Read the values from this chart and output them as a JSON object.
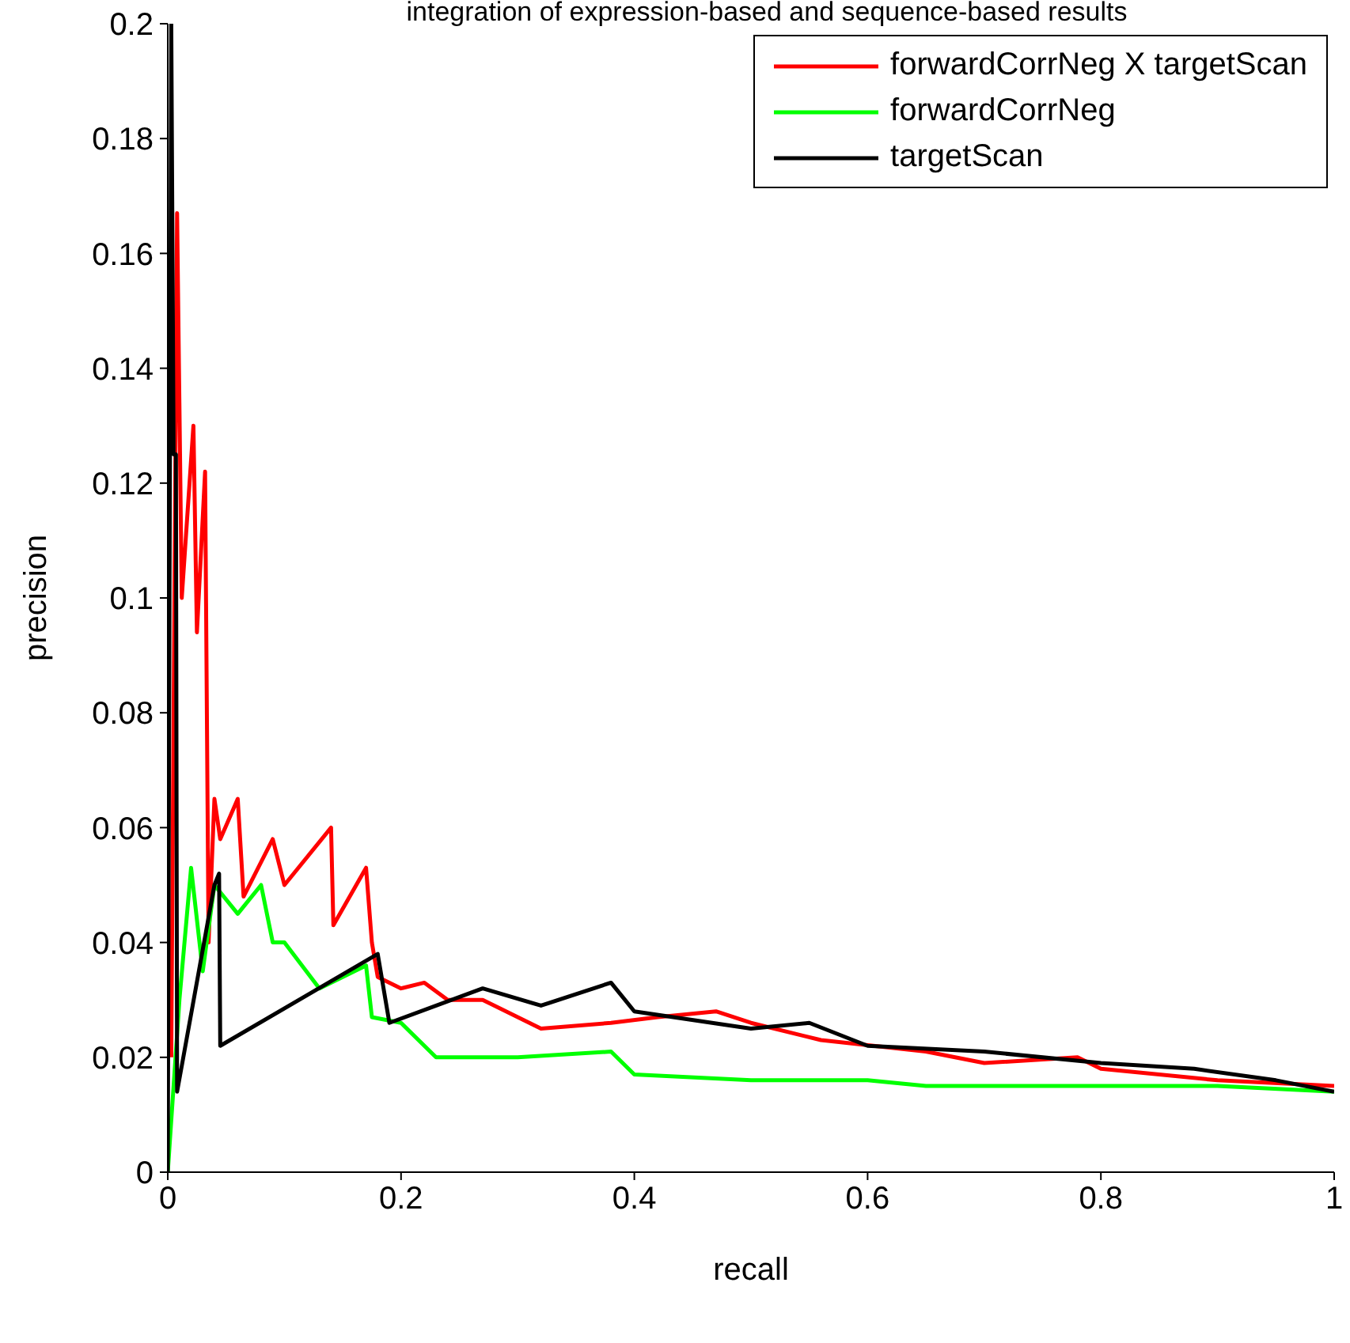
{
  "chart_data": {
    "type": "line",
    "title": "integration of expression-based and sequence-based results",
    "xlabel": "recall",
    "ylabel": "precision",
    "xlim": [
      0,
      1
    ],
    "xticks": [
      0,
      0.2,
      0.4,
      0.6,
      0.8,
      1
    ],
    "ylim": [
      0,
      0.2
    ],
    "yticks": [
      0,
      0.02,
      0.04,
      0.06,
      0.08,
      0.1,
      0.12,
      0.14,
      0.16,
      0.18,
      0.2
    ],
    "grid": false,
    "legend": "top right",
    "marker": "none",
    "line_style": "solid",
    "series": [
      {
        "name": "forwardCorrNeg X targetScan",
        "color": "#ff0000",
        "x": [
          0.003,
          0.008,
          0.012,
          0.022,
          0.025,
          0.032,
          0.035,
          0.04,
          0.045,
          0.06,
          0.065,
          0.09,
          0.1,
          0.14,
          0.142,
          0.17,
          0.175,
          0.18,
          0.2,
          0.22,
          0.24,
          0.27,
          0.32,
          0.38,
          0.42,
          0.47,
          0.5,
          0.56,
          0.65,
          0.7,
          0.78,
          0.8,
          0.9,
          1
        ],
        "values": [
          0.02,
          0.167,
          0.1,
          0.13,
          0.094,
          0.122,
          0.04,
          0.065,
          0.058,
          0.065,
          0.048,
          0.058,
          0.05,
          0.06,
          0.043,
          0.053,
          0.04,
          0.034,
          0.032,
          0.033,
          0.03,
          0.03,
          0.025,
          0.026,
          0.027,
          0.028,
          0.026,
          0.023,
          0.021,
          0.019,
          0.02,
          0.018,
          0.016,
          0.015
        ]
      },
      {
        "name": "forwardCorrNeg",
        "color": "#00ff00",
        "x": [
          0,
          0.01,
          0.02,
          0.03,
          0.04,
          0.06,
          0.08,
          0.09,
          0.1,
          0.13,
          0.15,
          0.17,
          0.175,
          0.2,
          0.23,
          0.3,
          0.38,
          0.4,
          0.5,
          0.6,
          0.65,
          0.8,
          0.9,
          1
        ],
        "values": [
          0,
          0.03,
          0.053,
          0.035,
          0.05,
          0.045,
          0.05,
          0.04,
          0.04,
          0.032,
          0.034,
          0.036,
          0.027,
          0.026,
          0.02,
          0.02,
          0.021,
          0.017,
          0.016,
          0.016,
          0.015,
          0.015,
          0.015,
          0.014
        ]
      },
      {
        "name": "targetScan",
        "color": "#000000",
        "x": [
          0,
          0.003,
          0.005,
          0.007,
          0.008,
          0.04,
          0.044,
          0.045,
          0.18,
          0.19,
          0.27,
          0.32,
          0.38,
          0.4,
          0.5,
          0.55,
          0.6,
          0.7,
          0.8,
          0.88,
          0.95,
          1
        ],
        "values": [
          0,
          0.2,
          0.125,
          0.125,
          0.014,
          0.05,
          0.052,
          0.022,
          0.038,
          0.026,
          0.032,
          0.029,
          0.033,
          0.028,
          0.025,
          0.026,
          0.022,
          0.021,
          0.019,
          0.018,
          0.016,
          0.014
        ]
      }
    ]
  }
}
